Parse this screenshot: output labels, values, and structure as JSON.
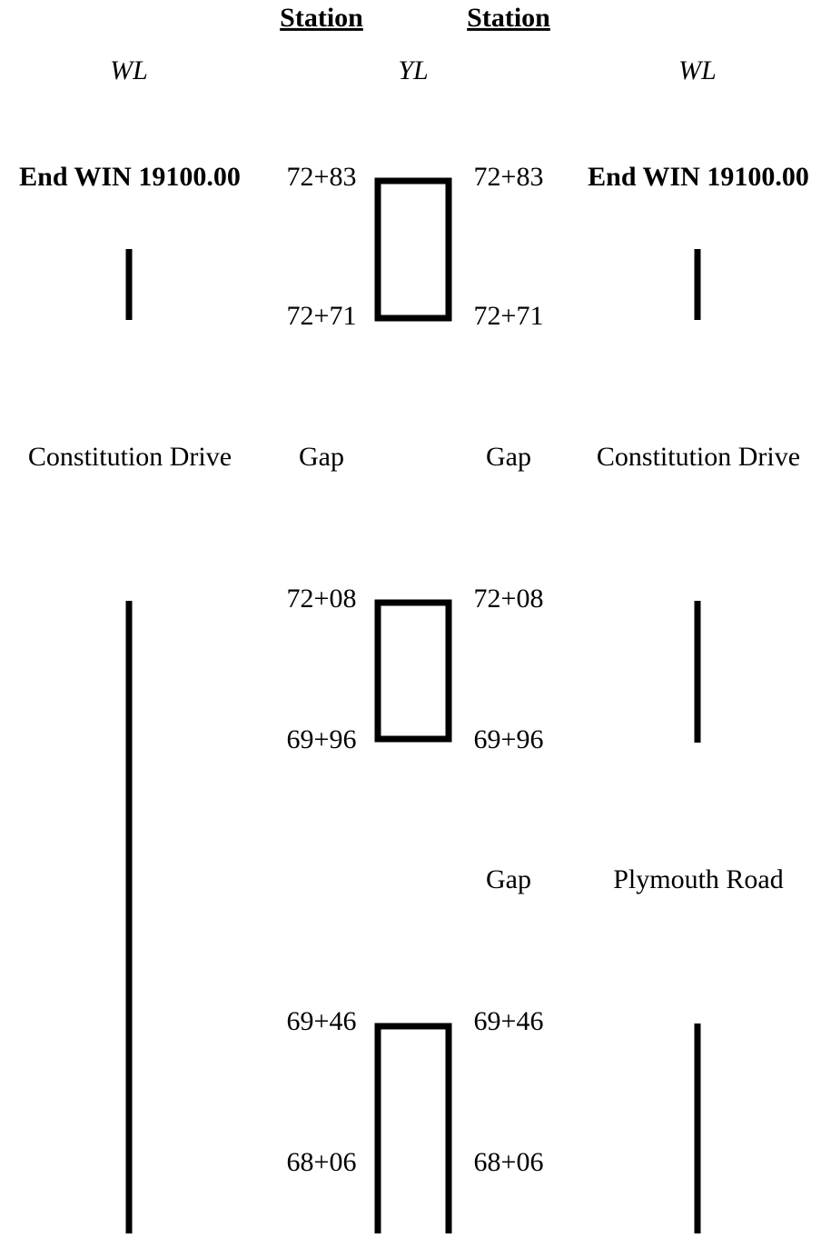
{
  "headers": [
    "Station",
    "Station"
  ],
  "columns": [
    "WL",
    "YL",
    "WL"
  ],
  "left_wl": [
    "End WIN 19100.00",
    "Constitution Drive"
  ],
  "left_stations": [
    "72+83",
    "72+71",
    "Gap",
    "72+08",
    "69+96",
    "69+46",
    "68+06"
  ],
  "right_stations": [
    "72+83",
    "72+71",
    "Gap",
    "72+08",
    "69+96",
    "Gap",
    "69+46",
    "68+06"
  ],
  "right_wl": [
    "End WIN 19100.00",
    "Constitution Drive",
    "Plymouth Road"
  ]
}
